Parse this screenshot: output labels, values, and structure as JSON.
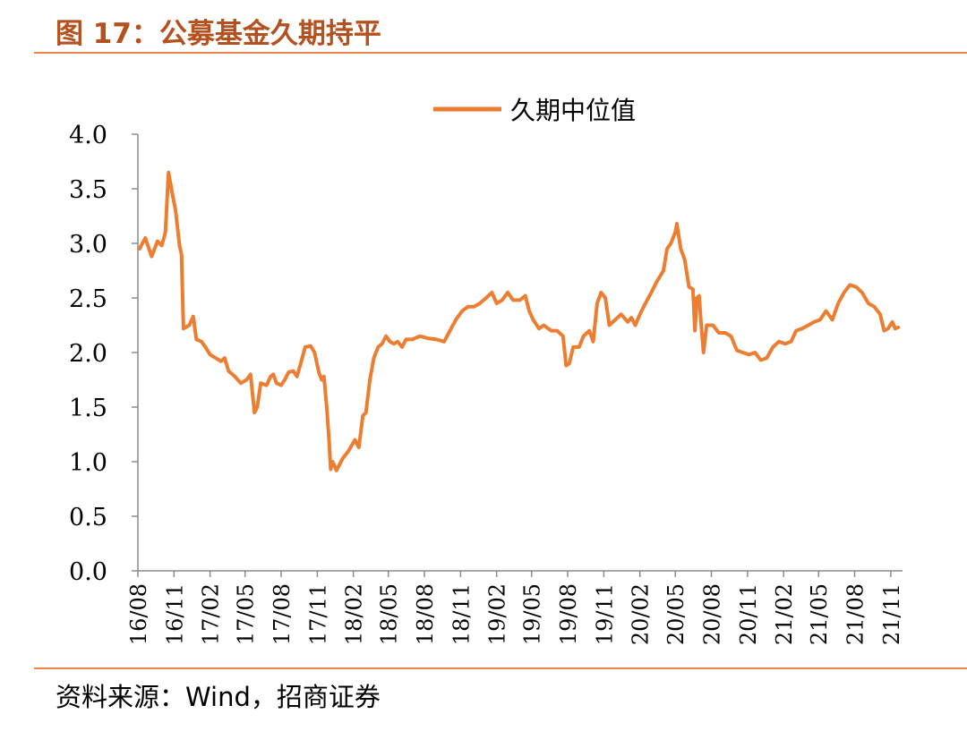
{
  "figure": {
    "title": "图 17：公募基金久期持平",
    "source": "资料来源：Wind，招商证券"
  },
  "colors": {
    "line": "#ED7D31",
    "title": "#B5511E",
    "rule": "#E8874A"
  },
  "chart_data": {
    "type": "line",
    "legend_position": "top-center",
    "grid": false,
    "ylim": [
      0,
      4
    ],
    "yticks": [
      "0.0",
      "0.5",
      "1.0",
      "1.5",
      "2.0",
      "2.5",
      "3.0",
      "3.5",
      "4.0"
    ],
    "xticks": [
      "16/08",
      "16/11",
      "17/02",
      "17/05",
      "17/08",
      "17/11",
      "18/02",
      "18/05",
      "18/08",
      "18/11",
      "19/02",
      "19/05",
      "19/08",
      "19/11",
      "20/02",
      "20/05",
      "20/08",
      "20/11",
      "21/02",
      "21/05",
      "21/08",
      "21/11"
    ],
    "series": [
      {
        "name": "久期中位值",
        "points": [
          [
            "2016-08-05",
            2.95
          ],
          [
            "2016-08-20",
            3.05
          ],
          [
            "2016-09-05",
            2.88
          ],
          [
            "2016-09-20",
            3.02
          ],
          [
            "2016-10-01",
            2.98
          ],
          [
            "2016-10-10",
            3.1
          ],
          [
            "2016-10-18",
            3.65
          ],
          [
            "2016-10-28",
            3.45
          ],
          [
            "2016-11-05",
            3.3
          ],
          [
            "2016-11-15",
            2.98
          ],
          [
            "2016-11-20",
            2.9
          ],
          [
            "2016-11-25",
            2.22
          ],
          [
            "2016-12-10",
            2.25
          ],
          [
            "2016-12-20",
            2.33
          ],
          [
            "2016-12-28",
            2.12
          ],
          [
            "2017-01-10",
            2.1
          ],
          [
            "2017-01-20",
            2.05
          ],
          [
            "2017-02-01",
            1.98
          ],
          [
            "2017-02-15",
            1.95
          ],
          [
            "2017-03-01",
            1.92
          ],
          [
            "2017-03-10",
            1.95
          ],
          [
            "2017-03-20",
            1.83
          ],
          [
            "2017-04-05",
            1.78
          ],
          [
            "2017-04-20",
            1.72
          ],
          [
            "2017-05-05",
            1.75
          ],
          [
            "2017-05-15",
            1.8
          ],
          [
            "2017-05-25",
            1.45
          ],
          [
            "2017-06-01",
            1.5
          ],
          [
            "2017-06-10",
            1.72
          ],
          [
            "2017-06-25",
            1.7
          ],
          [
            "2017-07-05",
            1.78
          ],
          [
            "2017-07-12",
            1.8
          ],
          [
            "2017-07-20",
            1.72
          ],
          [
            "2017-08-01",
            1.7
          ],
          [
            "2017-08-10",
            1.75
          ],
          [
            "2017-08-20",
            1.82
          ],
          [
            "2017-09-01",
            1.83
          ],
          [
            "2017-09-10",
            1.78
          ],
          [
            "2017-09-20",
            1.9
          ],
          [
            "2017-10-01",
            2.05
          ],
          [
            "2017-10-15",
            2.06
          ],
          [
            "2017-10-25",
            2.0
          ],
          [
            "2017-11-05",
            1.82
          ],
          [
            "2017-11-12",
            1.75
          ],
          [
            "2017-11-18",
            1.78
          ],
          [
            "2017-11-25",
            1.5
          ],
          [
            "2017-12-01",
            1.2
          ],
          [
            "2017-12-05",
            0.93
          ],
          [
            "2017-12-10",
            1.0
          ],
          [
            "2017-12-20",
            0.92
          ],
          [
            "2018-01-05",
            1.03
          ],
          [
            "2018-01-20",
            1.1
          ],
          [
            "2018-02-05",
            1.2
          ],
          [
            "2018-02-15",
            1.13
          ],
          [
            "2018-02-25",
            1.42
          ],
          [
            "2018-03-05",
            1.45
          ],
          [
            "2018-03-15",
            1.75
          ],
          [
            "2018-03-25",
            1.95
          ],
          [
            "2018-04-05",
            2.05
          ],
          [
            "2018-04-15",
            2.08
          ],
          [
            "2018-04-25",
            2.15
          ],
          [
            "2018-05-05",
            2.1
          ],
          [
            "2018-05-15",
            2.08
          ],
          [
            "2018-05-25",
            2.1
          ],
          [
            "2018-06-05",
            2.05
          ],
          [
            "2018-06-15",
            2.12
          ],
          [
            "2018-07-01",
            2.12
          ],
          [
            "2018-07-20",
            2.15
          ],
          [
            "2018-08-10",
            2.13
          ],
          [
            "2018-09-01",
            2.12
          ],
          [
            "2018-09-20",
            2.1
          ],
          [
            "2018-10-05",
            2.2
          ],
          [
            "2018-10-20",
            2.3
          ],
          [
            "2018-11-05",
            2.38
          ],
          [
            "2018-11-20",
            2.42
          ],
          [
            "2018-12-05",
            2.42
          ],
          [
            "2018-12-20",
            2.45
          ],
          [
            "2019-01-05",
            2.5
          ],
          [
            "2019-01-20",
            2.55
          ],
          [
            "2019-02-01",
            2.45
          ],
          [
            "2019-02-15",
            2.48
          ],
          [
            "2019-03-01",
            2.55
          ],
          [
            "2019-03-15",
            2.48
          ],
          [
            "2019-04-01",
            2.48
          ],
          [
            "2019-04-15",
            2.52
          ],
          [
            "2019-04-25",
            2.38
          ],
          [
            "2019-05-05",
            2.3
          ],
          [
            "2019-05-20",
            2.22
          ],
          [
            "2019-06-01",
            2.25
          ],
          [
            "2019-06-20",
            2.2
          ],
          [
            "2019-07-05",
            2.2
          ],
          [
            "2019-07-20",
            2.15
          ],
          [
            "2019-07-28",
            1.88
          ],
          [
            "2019-08-05",
            1.9
          ],
          [
            "2019-08-15",
            2.05
          ],
          [
            "2019-08-30",
            2.05
          ],
          [
            "2019-09-10",
            2.15
          ],
          [
            "2019-09-25",
            2.2
          ],
          [
            "2019-10-05",
            2.1
          ],
          [
            "2019-10-15",
            2.45
          ],
          [
            "2019-10-25",
            2.55
          ],
          [
            "2019-11-05",
            2.5
          ],
          [
            "2019-11-15",
            2.25
          ],
          [
            "2019-11-30",
            2.3
          ],
          [
            "2019-12-15",
            2.35
          ],
          [
            "2020-01-01",
            2.28
          ],
          [
            "2020-01-10",
            2.32
          ],
          [
            "2020-01-20",
            2.25
          ],
          [
            "2020-02-01",
            2.35
          ],
          [
            "2020-02-15",
            2.45
          ],
          [
            "2020-03-01",
            2.55
          ],
          [
            "2020-03-15",
            2.65
          ],
          [
            "2020-04-01",
            2.75
          ],
          [
            "2020-04-10",
            2.95
          ],
          [
            "2020-04-20",
            3.0
          ],
          [
            "2020-05-01",
            3.1
          ],
          [
            "2020-05-05",
            3.18
          ],
          [
            "2020-05-15",
            2.95
          ],
          [
            "2020-05-25",
            2.85
          ],
          [
            "2020-06-05",
            2.6
          ],
          [
            "2020-06-15",
            2.58
          ],
          [
            "2020-06-20",
            2.2
          ],
          [
            "2020-06-25",
            2.5
          ],
          [
            "2020-07-01",
            2.52
          ],
          [
            "2020-07-05",
            2.3
          ],
          [
            "2020-07-12",
            2.0
          ],
          [
            "2020-07-20",
            2.25
          ],
          [
            "2020-08-05",
            2.25
          ],
          [
            "2020-08-20",
            2.18
          ],
          [
            "2020-09-05",
            2.18
          ],
          [
            "2020-09-20",
            2.15
          ],
          [
            "2020-10-05",
            2.02
          ],
          [
            "2020-10-20",
            2.0
          ],
          [
            "2020-11-05",
            1.98
          ],
          [
            "2020-11-20",
            2.0
          ],
          [
            "2020-12-05",
            1.93
          ],
          [
            "2020-12-20",
            1.95
          ],
          [
            "2021-01-05",
            2.05
          ],
          [
            "2021-01-20",
            2.1
          ],
          [
            "2021-02-05",
            2.08
          ],
          [
            "2021-02-20",
            2.1
          ],
          [
            "2021-03-05",
            2.2
          ],
          [
            "2021-03-20",
            2.22
          ],
          [
            "2021-04-05",
            2.25
          ],
          [
            "2021-04-20",
            2.28
          ],
          [
            "2021-05-05",
            2.3
          ],
          [
            "2021-05-20",
            2.38
          ],
          [
            "2021-06-05",
            2.3
          ],
          [
            "2021-06-20",
            2.45
          ],
          [
            "2021-07-05",
            2.55
          ],
          [
            "2021-07-20",
            2.62
          ],
          [
            "2021-08-05",
            2.6
          ],
          [
            "2021-08-20",
            2.55
          ],
          [
            "2021-09-05",
            2.45
          ],
          [
            "2021-09-20",
            2.42
          ],
          [
            "2021-10-05",
            2.35
          ],
          [
            "2021-10-15",
            2.2
          ],
          [
            "2021-10-25",
            2.22
          ],
          [
            "2021-11-05",
            2.28
          ],
          [
            "2021-11-12",
            2.22
          ],
          [
            "2021-11-20",
            2.23
          ]
        ]
      }
    ]
  }
}
